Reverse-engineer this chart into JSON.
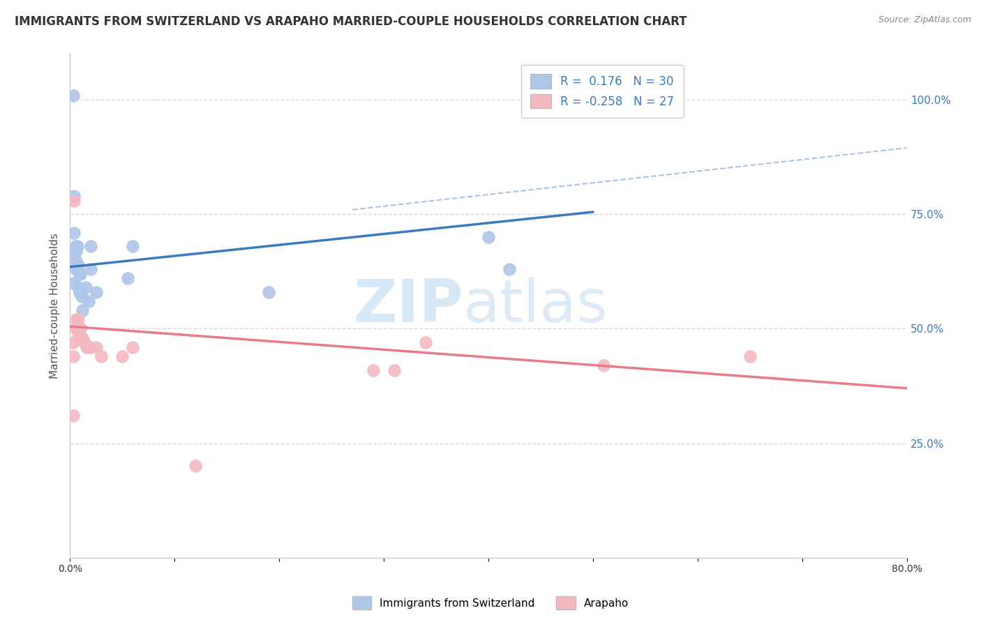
{
  "title": "IMMIGRANTS FROM SWITZERLAND VS ARAPAHO MARRIED-COUPLE HOUSEHOLDS CORRELATION CHART",
  "source": "Source: ZipAtlas.com",
  "ylabel": "Married-couple Households",
  "xlim": [
    0.0,
    0.8
  ],
  "ylim": [
    0.0,
    1.1
  ],
  "y_ticks_right": [
    0.25,
    0.5,
    0.75,
    1.0
  ],
  "y_tick_labels_right": [
    "25.0%",
    "50.0%",
    "75.0%",
    "100.0%"
  ],
  "x_tick_positions": [
    0.0,
    0.1,
    0.2,
    0.3,
    0.4,
    0.5,
    0.6,
    0.7,
    0.8
  ],
  "x_tick_labels": [
    "0.0%",
    "",
    "",
    "",
    "",
    "",
    "",
    "",
    "80.0%"
  ],
  "legend_blue_r": "0.176",
  "legend_blue_n": "30",
  "legend_pink_r": "-0.258",
  "legend_pink_n": "27",
  "legend_label_blue": "Immigrants from Switzerland",
  "legend_label_pink": "Arapaho",
  "blue_color": "#aec6e8",
  "pink_color": "#f4b8c1",
  "blue_line_color": "#3a7abf",
  "pink_line_color": "#e87a8a",
  "dashed_line_color": "#aac4e0",
  "blue_scatter_x": [
    0.003,
    0.003,
    0.003,
    0.003,
    0.004,
    0.004,
    0.005,
    0.005,
    0.006,
    0.006,
    0.007,
    0.007,
    0.008,
    0.008,
    0.009,
    0.009,
    0.01,
    0.01,
    0.011,
    0.012,
    0.015,
    0.018,
    0.02,
    0.025,
    0.02,
    0.055,
    0.06,
    0.19,
    0.4,
    0.42
  ],
  "blue_scatter_y": [
    1.01,
    0.67,
    0.64,
    0.6,
    0.79,
    0.71,
    0.68,
    0.65,
    0.67,
    0.63,
    0.68,
    0.64,
    0.64,
    0.59,
    0.62,
    0.58,
    0.62,
    0.58,
    0.57,
    0.54,
    0.59,
    0.56,
    0.63,
    0.58,
    0.68,
    0.61,
    0.68,
    0.58,
    0.7,
    0.63
  ],
  "pink_scatter_x": [
    0.003,
    0.003,
    0.003,
    0.004,
    0.005,
    0.006,
    0.007,
    0.008,
    0.008,
    0.009,
    0.01,
    0.01,
    0.012,
    0.014,
    0.016,
    0.017,
    0.02,
    0.025,
    0.03,
    0.05,
    0.06,
    0.12,
    0.29,
    0.31,
    0.34,
    0.51,
    0.65
  ],
  "pink_scatter_y": [
    0.47,
    0.44,
    0.31,
    0.78,
    0.5,
    0.52,
    0.5,
    0.52,
    0.48,
    0.5,
    0.5,
    0.48,
    0.48,
    0.47,
    0.46,
    0.46,
    0.46,
    0.46,
    0.44,
    0.44,
    0.46,
    0.2,
    0.41,
    0.41,
    0.47,
    0.42,
    0.44
  ],
  "blue_line_x": [
    0.0,
    0.5
  ],
  "blue_line_y": [
    0.635,
    0.755
  ],
  "pink_line_x": [
    0.0,
    0.8
  ],
  "pink_line_y": [
    0.505,
    0.37
  ],
  "dashed_line_x": [
    0.27,
    0.8
  ],
  "dashed_line_y": [
    0.76,
    0.895
  ],
  "watermark_zip": "ZIP",
  "watermark_atlas": "atlas",
  "background_color": "#ffffff",
  "grid_color": "#cccccc",
  "title_color": "#333333",
  "title_fontsize": 12,
  "axis_label_fontsize": 11,
  "tick_fontsize": 10,
  "scatter_size": 180
}
